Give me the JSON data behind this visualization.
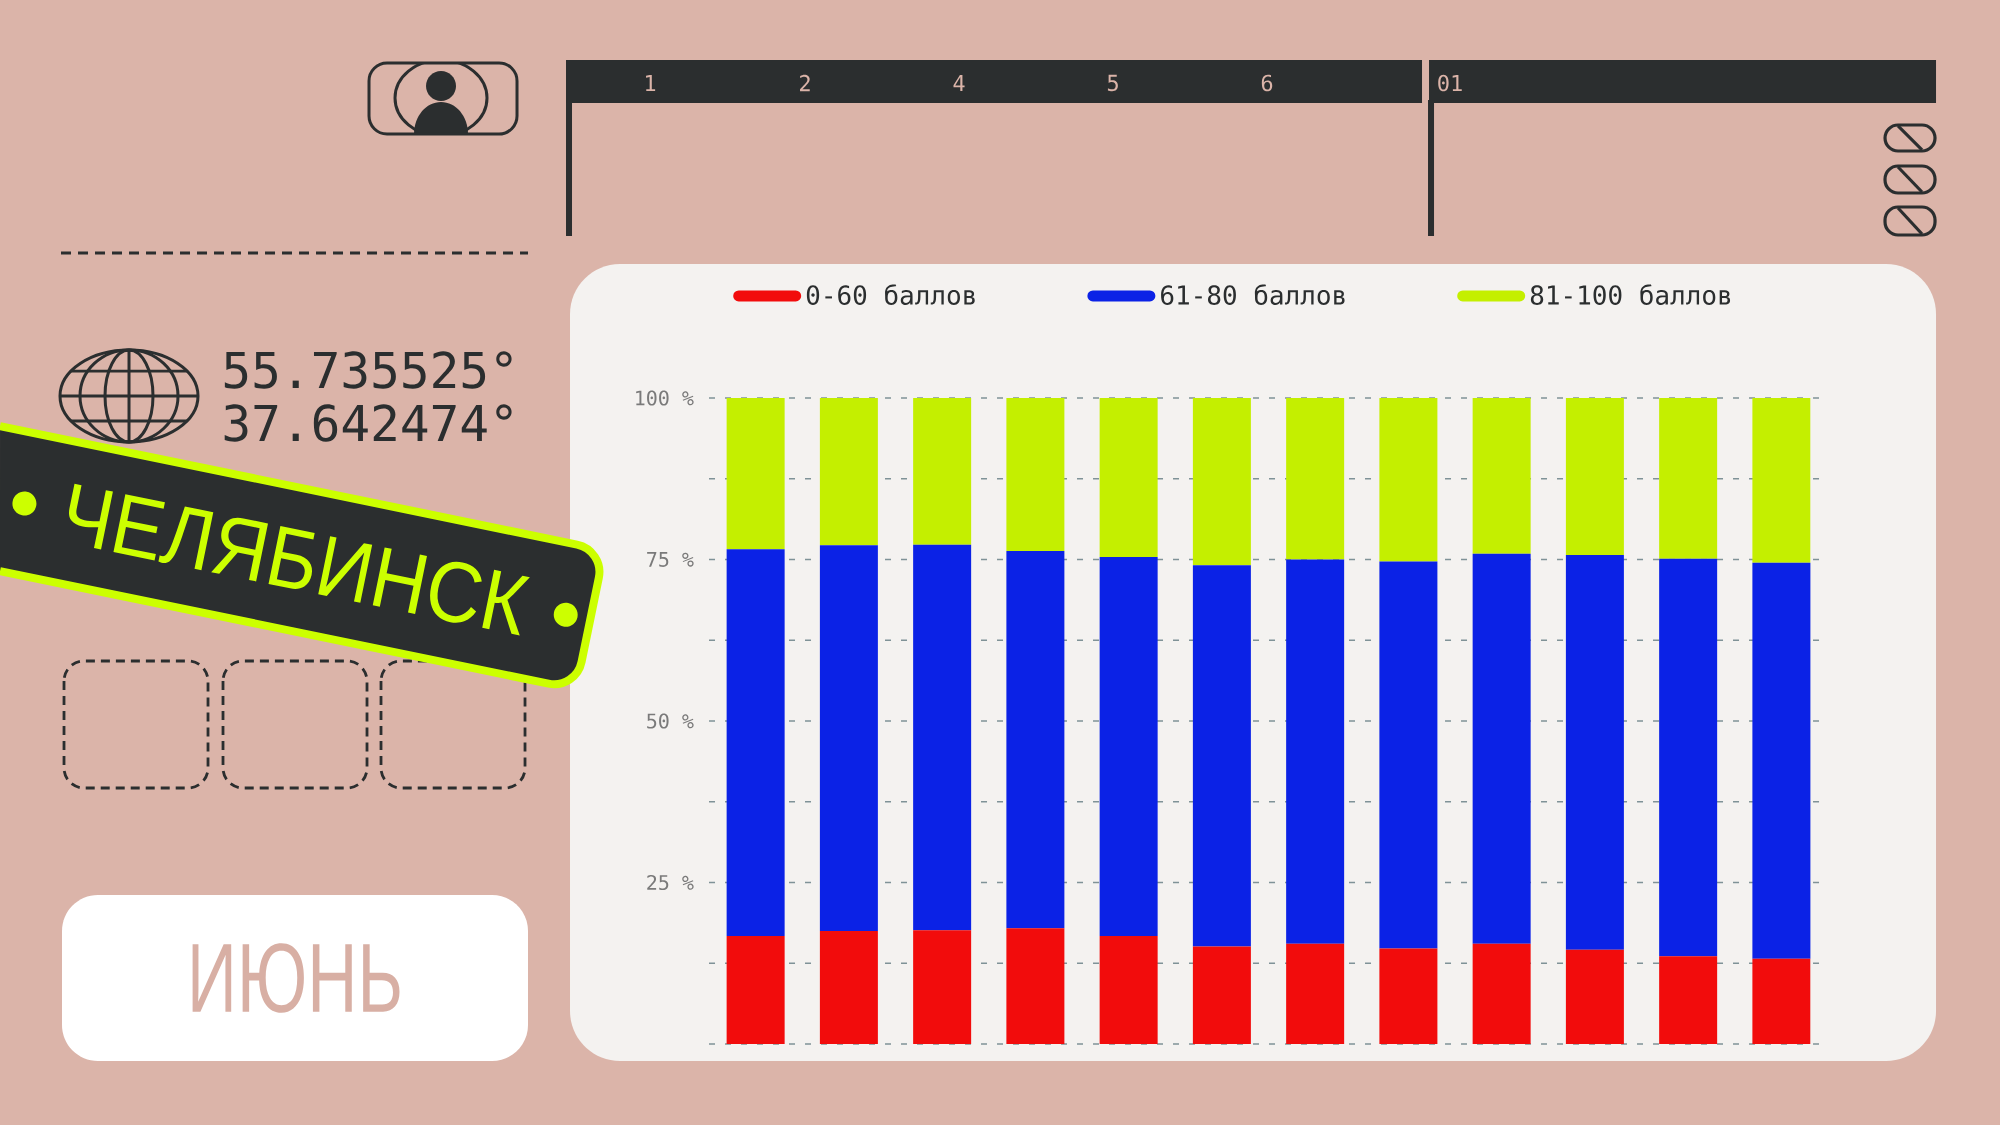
{
  "chart_data": {
    "type": "bar",
    "title": "ЧЕЛЯБИНСК",
    "subtitle": "ИЮНЬ",
    "annotations": [
      "55.735525°",
      "37.642474°",
      "1",
      "2",
      "4",
      "5",
      "6",
      "01"
    ],
    "categories": [
      null,
      null,
      null,
      null,
      null,
      null,
      null,
      null,
      null,
      null,
      null,
      null
    ],
    "stacked": true,
    "series": [
      {
        "name": "0-60 баллов",
        "color": "#f20c0c",
        "values": [
          16.7,
          17.5,
          17.6,
          17.9,
          16.7,
          15.1,
          15.5,
          14.8,
          15.5,
          14.6,
          13.6,
          13.2
        ]
      },
      {
        "name": "61-80 баллов",
        "color": "#0b22e6",
        "values": [
          59.9,
          59.7,
          59.7,
          58.4,
          58.7,
          59.0,
          59.5,
          59.9,
          60.4,
          61.1,
          61.5,
          61.3
        ]
      },
      {
        "name": "81-100 баллов",
        "color": "#c4ef00",
        "values": [
          23.4,
          22.8,
          22.7,
          23.7,
          24.6,
          25.9,
          25.0,
          25.3,
          24.1,
          24.3,
          24.9,
          25.5
        ]
      }
    ],
    "ylim": [
      0,
      100
    ],
    "yticks": [
      {
        "value": 0,
        "label": null
      },
      {
        "value": 12.5,
        "label": null
      },
      {
        "value": 25,
        "label": "25 %"
      },
      {
        "value": 37.5,
        "label": null
      },
      {
        "value": 50,
        "label": "50 %"
      },
      {
        "value": 62.5,
        "label": null
      },
      {
        "value": 75,
        "label": "75 %"
      },
      {
        "value": 87.5,
        "label": null
      },
      {
        "value": 100,
        "label": "100 %"
      }
    ],
    "tick_labels": "y",
    "grid": "y",
    "legend": "top"
  }
}
